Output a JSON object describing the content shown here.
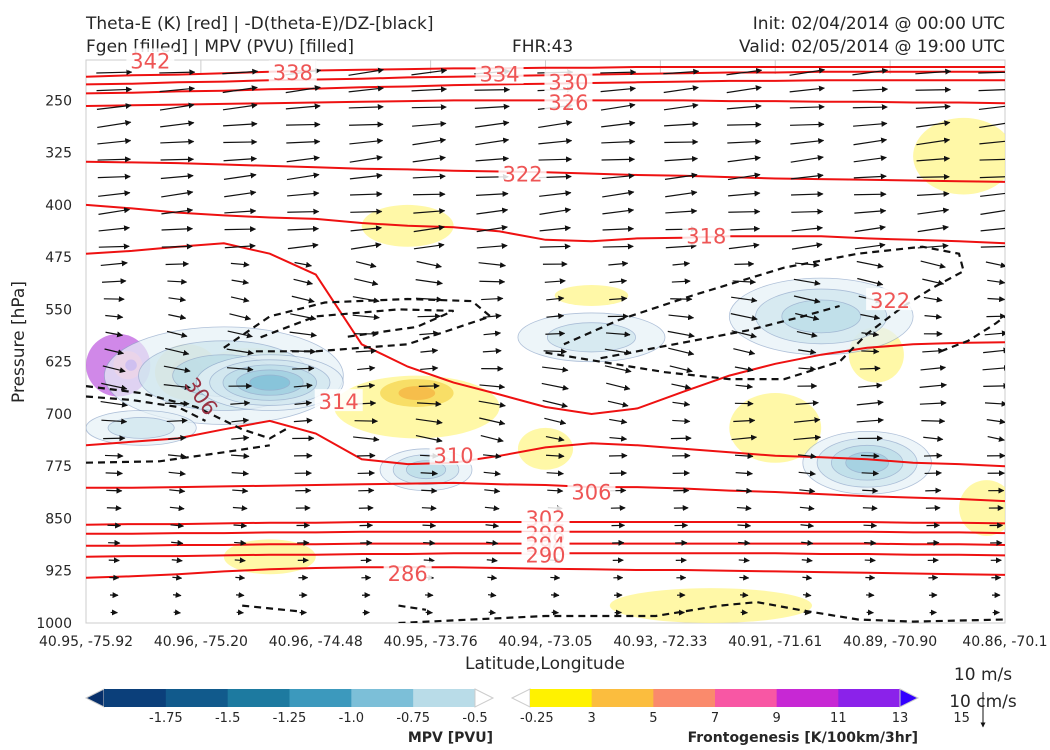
{
  "header": {
    "title_left_line1": "Theta-E (K) [red] | -D(theta-E)/DZ-[black]",
    "title_left_line2": "Fgen [filled] | MPV (PVU) [filled]",
    "fhr": "FHR:43",
    "init": "Init: 02/04/2014 @ 00:00 UTC",
    "valid": "Valid: 02/05/2014 @ 19:00 UTC"
  },
  "chart_data": {
    "type": "cross-section",
    "xlabel": "Latitude,Longitude",
    "ylabel": "Pressure [hPa]",
    "x_ticks": [
      "40.95, -75.92",
      "40.96, -75.20",
      "40.96, -74.48",
      "40.95, -73.76",
      "40.94, -73.05",
      "40.93, -72.33",
      "40.91, -71.61",
      "40.89, -70.90",
      "40.86, -70.1"
    ],
    "y_ticks": [
      250,
      325,
      400,
      475,
      550,
      625,
      700,
      775,
      850,
      925,
      1000
    ],
    "ylim": [
      1000,
      192
    ],
    "theta_e_contours_K": [
      {
        "value": 342,
        "levels": [
          186,
          186,
          188,
          188,
          189,
          189,
          189,
          189,
          189,
          189,
          189,
          189,
          189,
          189,
          189,
          189,
          189,
          189,
          189,
          189,
          189
        ]
      },
      {
        "value": 338,
        "levels": [
          216,
          214,
          213,
          211,
          209,
          207,
          206,
          205,
          204,
          204,
          203,
          203,
          202,
          202,
          202,
          202,
          202,
          202,
          202,
          202,
          202
        ]
      },
      {
        "value": 334,
        "levels": [
          227,
          226,
          224,
          223,
          221,
          220,
          219,
          217,
          216,
          215,
          214,
          213,
          212,
          211,
          210,
          210,
          209,
          209,
          209,
          209,
          209
        ]
      },
      {
        "value": 330,
        "levels": [
          240,
          239,
          237,
          236,
          234,
          233,
          231,
          230,
          228,
          227,
          226,
          225,
          224,
          223,
          222,
          222,
          221,
          221,
          221,
          221,
          221
        ]
      },
      {
        "value": 326,
        "levels": [
          258,
          257,
          256,
          255,
          254,
          253,
          252,
          251,
          250,
          250,
          250,
          250,
          250,
          250,
          251,
          251,
          252,
          252,
          253,
          253,
          254
        ]
      },
      {
        "value": 322,
        "levels": [
          338,
          339,
          340,
          342,
          344,
          346,
          348,
          349,
          351,
          352,
          353,
          355,
          357,
          358,
          360,
          362,
          363,
          364,
          365,
          366,
          367
        ]
      },
      {
        "value": 318,
        "levels": [
          400,
          405,
          411,
          415,
          418,
          420,
          426,
          430,
          432,
          438,
          450,
          452,
          448,
          447,
          445,
          445,
          445,
          448,
          450,
          452,
          455
        ]
      },
      {
        "value": 314,
        "levels": [
          470,
          466,
          460,
          455,
          470,
          500,
          600,
          632,
          655,
          672,
          690,
          700,
          692,
          668,
          645,
          628,
          615,
          605,
          600,
          598,
          597
        ]
      },
      {
        "value": 310,
        "levels": [
          745,
          740,
          735,
          722,
          710,
          728,
          765,
          772,
          770,
          760,
          748,
          742,
          745,
          750,
          755,
          760,
          762,
          765,
          770,
          772,
          775
        ]
      },
      {
        "value": 306,
        "levels": [
          806,
          806,
          805,
          804,
          803,
          802,
          801,
          800,
          799,
          801,
          802,
          805,
          805,
          807,
          810,
          812,
          815,
          818,
          820,
          822,
          825
        ]
      },
      {
        "value": 302,
        "levels": [
          859,
          858,
          858,
          857,
          856,
          856,
          855,
          855,
          855,
          855,
          855,
          855,
          855,
          855,
          855,
          855,
          855,
          855,
          856,
          856,
          857
        ]
      },
      {
        "value": 298,
        "levels": [
          872,
          872,
          871,
          871,
          870,
          870,
          869,
          869,
          869,
          869,
          869,
          869,
          869,
          869,
          869,
          869,
          869,
          869,
          870,
          870,
          871
        ]
      },
      {
        "value": 294,
        "levels": [
          889,
          889,
          888,
          888,
          887,
          887,
          886,
          886,
          886,
          886,
          886,
          886,
          886,
          886,
          886,
          886,
          886,
          886,
          887,
          887,
          888
        ]
      },
      {
        "value": 290,
        "levels": [
          905,
          904,
          904,
          903,
          902,
          902,
          901,
          901,
          900,
          900,
          900,
          900,
          900,
          900,
          900,
          900,
          901,
          901,
          902,
          902,
          903
        ]
      },
      {
        "value": 286,
        "levels": [
          935,
          933,
          930,
          926,
          923,
          921,
          920,
          920,
          920,
          921,
          922,
          923,
          924,
          924,
          925,
          926,
          927,
          928,
          929,
          930,
          931
        ]
      }
    ],
    "theta_e_labels": [
      {
        "text": "342",
        "x": 0.07,
        "p": 194
      },
      {
        "text": "338",
        "x": 0.225,
        "p": 211
      },
      {
        "text": "334",
        "x": 0.45,
        "p": 213
      },
      {
        "text": "330",
        "x": 0.525,
        "p": 224
      },
      {
        "text": "326",
        "x": 0.525,
        "p": 254
      },
      {
        "text": "322",
        "x": 0.475,
        "p": 356
      },
      {
        "text": "318",
        "x": 0.675,
        "p": 445
      },
      {
        "text": "322",
        "x": 0.875,
        "p": 538
      },
      {
        "text": "314",
        "x": 0.275,
        "p": 683
      },
      {
        "text": "310",
        "x": 0.4,
        "p": 760
      },
      {
        "text": "306",
        "x": 0.55,
        "p": 813
      },
      {
        "text": "302",
        "x": 0.5,
        "p": 851
      },
      {
        "text": "298",
        "x": 0.5,
        "p": 873
      },
      {
        "text": "294",
        "x": 0.5,
        "p": 888
      },
      {
        "text": "290",
        "x": 0.5,
        "p": 903
      },
      {
        "text": "286",
        "x": 0.35,
        "p": 930
      }
    ],
    "dthetae_dz_labels": [
      {
        "text": "306",
        "x": 0.125,
        "p": 675
      }
    ],
    "wind_legend": {
      "horizontal": "10 m/s",
      "vertical": "10 cm/s"
    },
    "colorbars": [
      {
        "title": "MPV [PVU]",
        "labels": [
          "-1.75",
          "-1.5",
          "-1.25",
          "-1.0",
          "-0.75",
          "-0.5",
          "-0.25"
        ],
        "colors": [
          "#08306b",
          "#0b3f7a",
          "#115a8c",
          "#1d7aa0",
          "#3c99bd",
          "#7cbfd8",
          "#b9dce8",
          "#ffffff"
        ]
      },
      {
        "title": "Frontogenesis [K/100km/3hr]",
        "labels": [
          "3",
          "5",
          "7",
          "9",
          "11",
          "13",
          "15"
        ],
        "colors": [
          "#ffffff",
          "#fff200",
          "#fbbd3e",
          "#fa8a6c",
          "#f857a4",
          "#c728d4",
          "#8b22ea",
          "#3300ff"
        ]
      }
    ],
    "fgen_blobs": [
      {
        "x": 0.035,
        "p": 630,
        "rx": 0.035,
        "rp": 45,
        "level": "max"
      },
      {
        "x": 0.11,
        "p": 640,
        "rx": 0.035,
        "rp": 40,
        "level": "mid"
      },
      {
        "x": 0.18,
        "p": 635,
        "rx": 0.05,
        "rp": 30,
        "level": "low"
      },
      {
        "x": 0.35,
        "p": 430,
        "rx": 0.05,
        "rp": 30,
        "level": "low"
      },
      {
        "x": 0.36,
        "p": 690,
        "rx": 0.09,
        "rp": 45,
        "level": "low"
      },
      {
        "x": 0.36,
        "p": 670,
        "rx": 0.04,
        "rp": 20,
        "level": "mid"
      },
      {
        "x": 0.5,
        "p": 750,
        "rx": 0.03,
        "rp": 30,
        "level": "low"
      },
      {
        "x": 0.75,
        "p": 720,
        "rx": 0.05,
        "rp": 50,
        "level": "low"
      },
      {
        "x": 0.86,
        "p": 615,
        "rx": 0.03,
        "rp": 40,
        "level": "low"
      },
      {
        "x": 0.955,
        "p": 330,
        "rx": 0.055,
        "rp": 55,
        "level": "low"
      },
      {
        "x": 0.2,
        "p": 905,
        "rx": 0.05,
        "rp": 25,
        "level": "low"
      },
      {
        "x": 0.68,
        "p": 975,
        "rx": 0.11,
        "rp": 25,
        "level": "low"
      },
      {
        "x": 0.98,
        "p": 835,
        "rx": 0.03,
        "rp": 40,
        "level": "low"
      },
      {
        "x": 0.55,
        "p": 530,
        "rx": 0.04,
        "rp": 15,
        "level": "low"
      }
    ],
    "mpv_blobs": [
      {
        "x": 0.15,
        "p": 645,
        "rx": 0.13,
        "rp": 70,
        "level": 3
      },
      {
        "x": 0.2,
        "p": 655,
        "rx": 0.08,
        "rp": 40,
        "level": 5
      },
      {
        "x": 0.37,
        "p": 780,
        "rx": 0.05,
        "rp": 30,
        "level": 3
      },
      {
        "x": 0.55,
        "p": 590,
        "rx": 0.08,
        "rp": 35,
        "level": 2
      },
      {
        "x": 0.8,
        "p": 560,
        "rx": 0.1,
        "rp": 55,
        "level": 3
      },
      {
        "x": 0.85,
        "p": 770,
        "rx": 0.07,
        "rp": 45,
        "level": 4
      },
      {
        "x": 0.06,
        "p": 720,
        "rx": 0.06,
        "rp": 25,
        "level": 2
      }
    ]
  }
}
